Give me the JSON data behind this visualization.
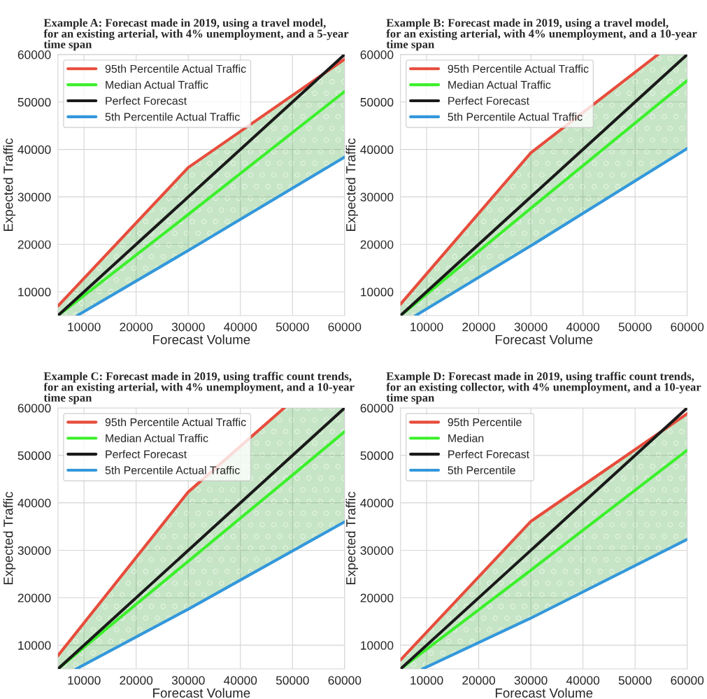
{
  "chart_data": [
    {
      "type": "line",
      "title": "Example A: Forecast made in 2019, using a travel model,\nfor an existing arterial, with 4% unemployment, and a 5-year\ntime span",
      "xlabel": "Forecast Volume",
      "ylabel": "Expected Traffic",
      "xlim": [
        5000,
        60000
      ],
      "ylim": [
        5000,
        60000
      ],
      "xticks": [
        10000,
        20000,
        30000,
        40000,
        50000,
        60000
      ],
      "yticks": [
        10000,
        20000,
        30000,
        40000,
        50000,
        60000
      ],
      "grid": true,
      "legend": "top left",
      "line_style": "solid",
      "series": [
        {
          "name": "95th Percentile Actual Traffic",
          "color": "#e74c3c",
          "x": [
            5000,
            30000,
            60000
          ],
          "values": [
            7000,
            36200,
            59000
          ]
        },
        {
          "name": "Median Actual Traffic",
          "color": "#3cf02c",
          "x": [
            5000,
            8700,
            30000,
            60000
          ],
          "values": [
            5000,
            8100,
            26300,
            52200
          ],
          "lower": [
            5000,
            5000,
            18700,
            38400
          ],
          "upper": [
            7000,
            11300,
            36200,
            59000
          ]
        },
        {
          "name": "Perfect Forecast",
          "color": "#1a1a1a",
          "x": [
            5000,
            60000
          ],
          "values": [
            5000,
            60000
          ]
        },
        {
          "name": "5th Percentile Actual Traffic",
          "color": "#3498db",
          "x": [
            8700,
            30000,
            60000
          ],
          "values": [
            5000,
            18700,
            38400
          ]
        }
      ]
    },
    {
      "type": "line",
      "title": "Example B: Forecast made in 2019, using a travel model,\nfor an existing arterial, with 4% unemployment, and a 10-year\ntime span",
      "xlabel": "Forecast Volume",
      "ylabel": "Expected Traffic",
      "xlim": [
        5000,
        60000
      ],
      "ylim": [
        5000,
        60000
      ],
      "xticks": [
        10000,
        20000,
        30000,
        40000,
        50000,
        60000
      ],
      "yticks": [
        10000,
        20000,
        30000,
        40000,
        50000,
        60000
      ],
      "grid": true,
      "legend": "top left",
      "line_style": "solid",
      "series": [
        {
          "name": "95th Percentile Actual Traffic",
          "color": "#e74c3c",
          "x": [
            5000,
            30000,
            54400
          ],
          "values": [
            7400,
            39300,
            60000
          ]
        },
        {
          "name": "Median Actual Traffic",
          "color": "#3cf02c",
          "x": [
            5000,
            7900,
            30000,
            54400,
            60000
          ],
          "values": [
            5000,
            7600,
            27600,
            49500,
            54500
          ],
          "lower": [
            5000,
            5000,
            19700,
            36400,
            40200
          ],
          "upper": [
            7400,
            11100,
            39300,
            60000,
            60000
          ]
        },
        {
          "name": "Perfect Forecast",
          "color": "#1a1a1a",
          "x": [
            5000,
            60000
          ],
          "values": [
            5000,
            60000
          ]
        },
        {
          "name": "5th Percentile Actual Traffic",
          "color": "#3498db",
          "x": [
            7900,
            30000,
            60000
          ],
          "values": [
            5000,
            19700,
            40200
          ]
        }
      ]
    },
    {
      "type": "line",
      "title": "Example C: Forecast made in 2019, using traffic count trends,\nfor an existing arterial, with 4% unemployment, and a 10-year\ntime span",
      "xlabel": "Forecast Volume",
      "ylabel": "Expected Traffic",
      "xlim": [
        5000,
        60000
      ],
      "ylim": [
        5000,
        60000
      ],
      "xticks": [
        10000,
        20000,
        30000,
        40000,
        50000,
        60000
      ],
      "yticks": [
        10000,
        20000,
        30000,
        40000,
        50000,
        60000
      ],
      "grid": true,
      "legend": "top left",
      "line_style": "solid",
      "series": [
        {
          "name": "95th Percentile Actual Traffic",
          "color": "#e74c3c",
          "x": [
            5000,
            30000,
            48400
          ],
          "values": [
            7800,
            42300,
            60000
          ]
        },
        {
          "name": "Median Actual Traffic",
          "color": "#3cf02c",
          "x": [
            5000,
            8500,
            30000,
            48400,
            60000
          ],
          "values": [
            5000,
            8200,
            27700,
            44400,
            55000
          ],
          "lower": [
            5000,
            5000,
            17600,
            28900,
            36000
          ],
          "upper": [
            7800,
            12600,
            42300,
            60000,
            60000
          ]
        },
        {
          "name": "Perfect Forecast",
          "color": "#1a1a1a",
          "x": [
            5000,
            60000
          ],
          "values": [
            5000,
            60000
          ]
        },
        {
          "name": "5th Percentile Actual Traffic",
          "color": "#3498db",
          "x": [
            8500,
            30000,
            60000
          ],
          "values": [
            5000,
            17600,
            36000
          ]
        }
      ]
    },
    {
      "type": "line",
      "title": "Example D: Forecast made in 2019, using traffic count trends,\nfor an existing collector, with 4% unemployment, and a 10-year\ntime span",
      "xlabel": "Forecast Volume",
      "ylabel": "Expected Traffic",
      "xlim": [
        5000,
        60000
      ],
      "ylim": [
        5000,
        60000
      ],
      "xticks": [
        10000,
        20000,
        30000,
        40000,
        50000,
        60000
      ],
      "yticks": [
        10000,
        20000,
        30000,
        40000,
        50000,
        60000
      ],
      "grid": true,
      "legend": "top left",
      "line_style": "solid",
      "series": [
        {
          "name": "95th Percentile",
          "color": "#e74c3c",
          "x": [
            5000,
            30000,
            60000
          ],
          "values": [
            6900,
            36100,
            58800
          ]
        },
        {
          "name": "Median",
          "color": "#3cf02c",
          "x": [
            5000,
            9200,
            30000,
            60000
          ],
          "values": [
            5000,
            8500,
            25800,
            51100
          ],
          "lower": [
            5000,
            5000,
            15700,
            32300
          ],
          "upper": [
            6900,
            11800,
            36100,
            58800
          ]
        },
        {
          "name": "Perfect Forecast",
          "color": "#1a1a1a",
          "x": [
            5000,
            60000
          ],
          "values": [
            5000,
            60000
          ]
        },
        {
          "name": "5th Percentile",
          "color": "#3498db",
          "x": [
            9200,
            30000,
            60000
          ],
          "values": [
            5000,
            15700,
            32300
          ]
        }
      ]
    }
  ]
}
